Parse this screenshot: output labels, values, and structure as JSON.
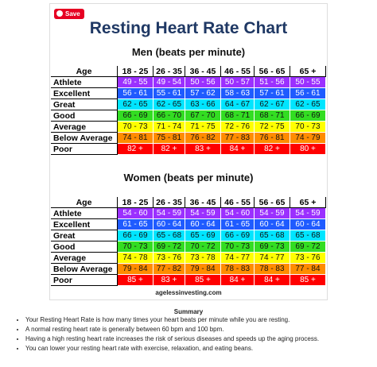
{
  "save_button": "Save",
  "title": "Resting Heart Rate Chart",
  "men": {
    "heading": "Men (beats per minute)",
    "header": [
      "Age",
      "18 - 25",
      "26 - 35",
      "36 - 45",
      "46 - 55",
      "56 - 65",
      "65 +"
    ],
    "rows": [
      [
        "Athlete",
        "49 - 55",
        "49 - 54",
        "50 - 56",
        "50 - 57",
        "51 - 56",
        "50 - 55"
      ],
      [
        "Excellent",
        "56 - 61",
        "55 - 61",
        "57 - 62",
        "58 - 63",
        "57 - 61",
        "56 - 61"
      ],
      [
        "Great",
        "62 - 65",
        "62 - 65",
        "63 - 66",
        "64 - 67",
        "62 - 67",
        "62 - 65"
      ],
      [
        "Good",
        "66 - 69",
        "66 - 70",
        "67 - 70",
        "68 - 71",
        "68 - 71",
        "66 - 69"
      ],
      [
        "Average",
        "70 - 73",
        "71 - 74",
        "71 - 75",
        "72 - 76",
        "72 - 75",
        "70 - 73"
      ],
      [
        "Below Average",
        "74 - 81",
        "75 - 81",
        "76 - 82",
        "77 - 83",
        "76 - 81",
        "74 - 79"
      ],
      [
        "Poor",
        "82 +",
        "82 +",
        "83 +",
        "84 +",
        "82 +",
        "80 +"
      ]
    ]
  },
  "women": {
    "heading": "Women (beats per minute)",
    "header": [
      "Age",
      "18 - 25",
      "26 - 35",
      "36 - 45",
      "46 - 55",
      "56 - 65",
      "65 +"
    ],
    "rows": [
      [
        "Athlete",
        "54 - 60",
        "54 - 59",
        "54 - 59",
        "54 - 60",
        "54 - 59",
        "54 - 59"
      ],
      [
        "Excellent",
        "61 - 65",
        "60 - 64",
        "60 - 64",
        "61 - 65",
        "60 - 64",
        "60 - 64"
      ],
      [
        "Great",
        "66 - 69",
        "65 - 68",
        "65 - 69",
        "66 - 69",
        "65 - 68",
        "65 - 68"
      ],
      [
        "Good",
        "70 - 73",
        "69 - 72",
        "70 - 72",
        "70 - 73",
        "69 - 73",
        "69 - 72"
      ],
      [
        "Average",
        "74 - 78",
        "73 - 76",
        "73 - 78",
        "74 - 77",
        "74 - 77",
        "73 - 76"
      ],
      [
        "Below Average",
        "79 - 84",
        "77 - 82",
        "79 - 84",
        "78 - 83",
        "78 - 83",
        "77 - 84"
      ],
      [
        "Poor",
        "85 +",
        "83 +",
        "85 +",
        "84 +",
        "84 +",
        "85 +"
      ]
    ]
  },
  "source": "agelessinvesting.com",
  "summary": {
    "heading": "Summary",
    "bullets": [
      "Your Resting Heart Rate is how many times your heart beats per minute while you are resting.",
      "A normal resting heart rate is generally between 60 bpm and 100 bpm.",
      "Having a high resting heart rate increases the risk of serious diseases and speeds up the aging process.",
      "You can lower your resting heart rate with exercise, relaxation, and eating beans."
    ]
  }
}
